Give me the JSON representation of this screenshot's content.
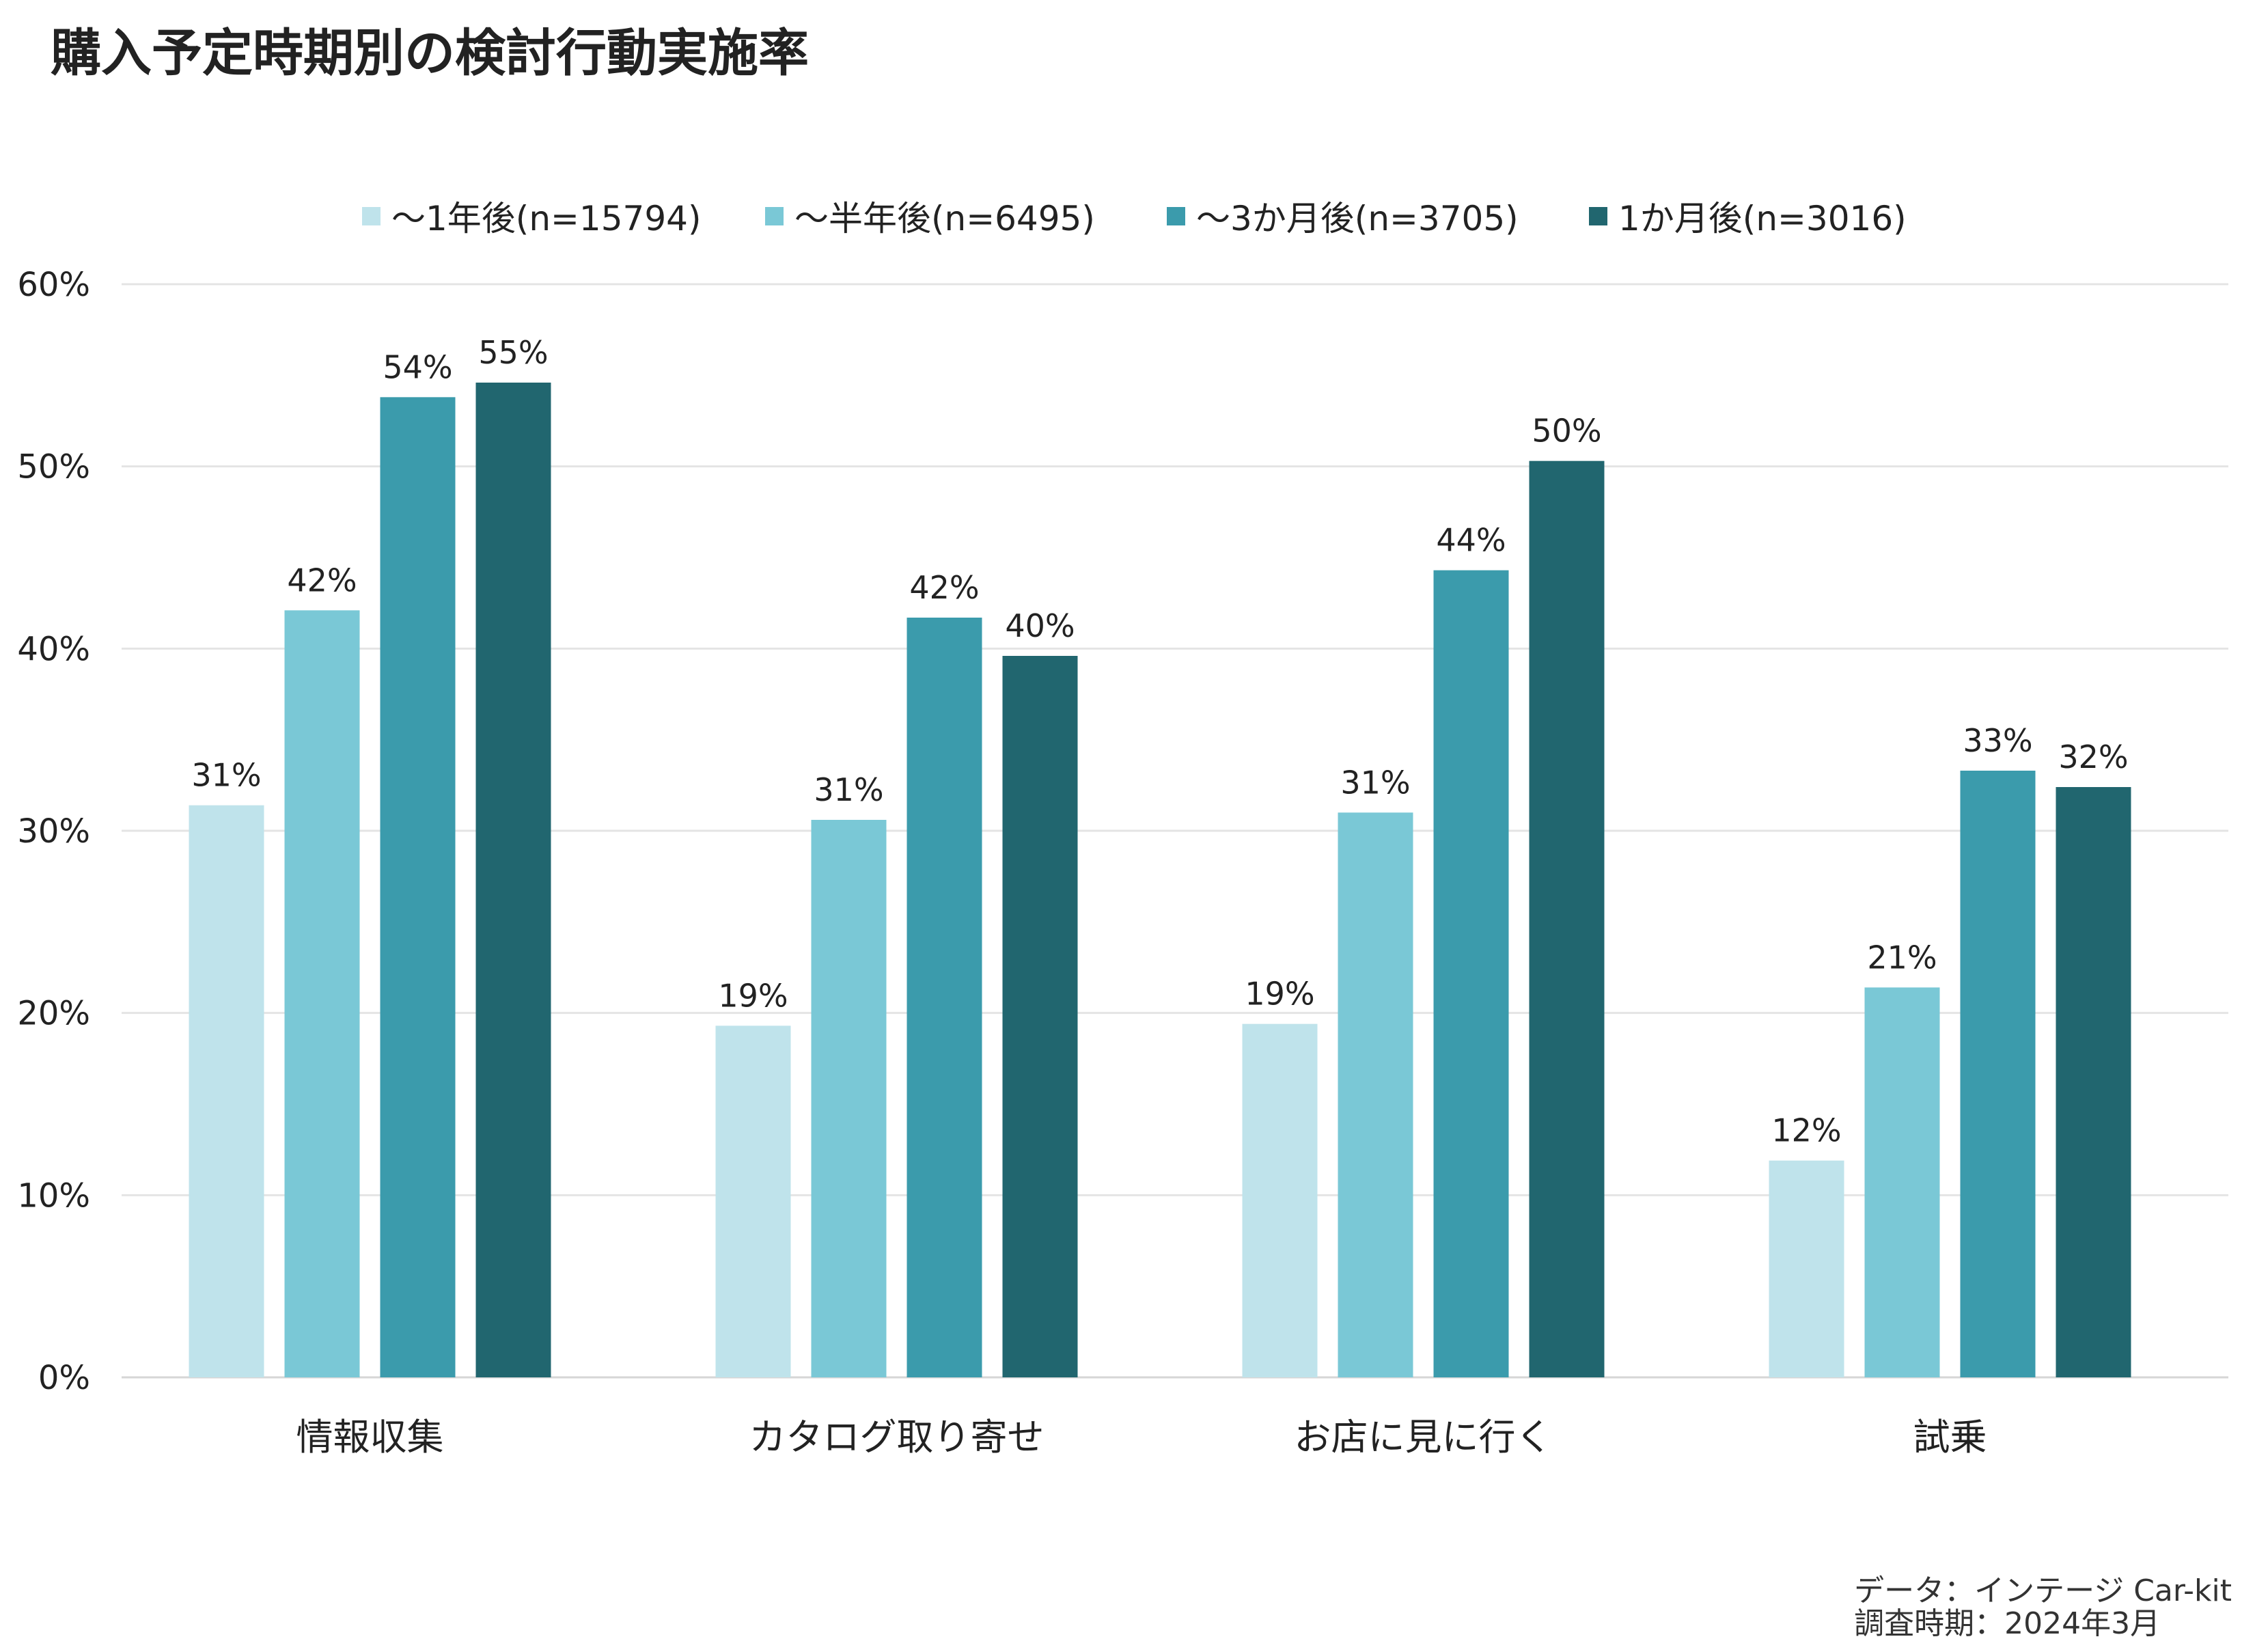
{
  "colors": {
    "series": [
      "#bfe3eb",
      "#7ac8d6",
      "#3b9bac",
      "#21666f"
    ],
    "grid": "#e4e4e4",
    "text": "#222222"
  },
  "chart_data": {
    "type": "bar",
    "title": "購入予定時期別の検討行動実施率",
    "xlabel": "",
    "ylabel": "",
    "categories": [
      "情報収集",
      "カタログ取り寄せ",
      "お店に見に行く",
      "試乗"
    ],
    "series": [
      {
        "name": "～1年後(n=15794)",
        "values": [
          31.4,
          19.3,
          19.4,
          11.9
        ],
        "labels": [
          "31%",
          "19%",
          "19%",
          "12%"
        ]
      },
      {
        "name": "～半年後(n=6495)",
        "values": [
          42.1,
          30.6,
          31.0,
          21.4
        ],
        "labels": [
          "42%",
          "31%",
          "31%",
          "21%"
        ]
      },
      {
        "name": "～3か月後(n=3705)",
        "values": [
          53.8,
          41.7,
          44.3,
          33.3
        ],
        "labels": [
          "54%",
          "42%",
          "44%",
          "33%"
        ]
      },
      {
        "name": "1か月後(n=3016)",
        "values": [
          54.6,
          39.6,
          50.3,
          32.4
        ],
        "labels": [
          "55%",
          "40%",
          "50%",
          "32%"
        ]
      }
    ],
    "ylim": [
      0,
      60
    ],
    "yticks": [
      0,
      10,
      20,
      30,
      40,
      50,
      60
    ],
    "ytick_labels": [
      "0%",
      "10%",
      "20%",
      "30%",
      "40%",
      "50%",
      "60%"
    ],
    "grid": true,
    "legend_position": "top"
  },
  "source": {
    "line1": "データ：インテージ Car-kit",
    "line2": "調査時期：2024年3月"
  }
}
